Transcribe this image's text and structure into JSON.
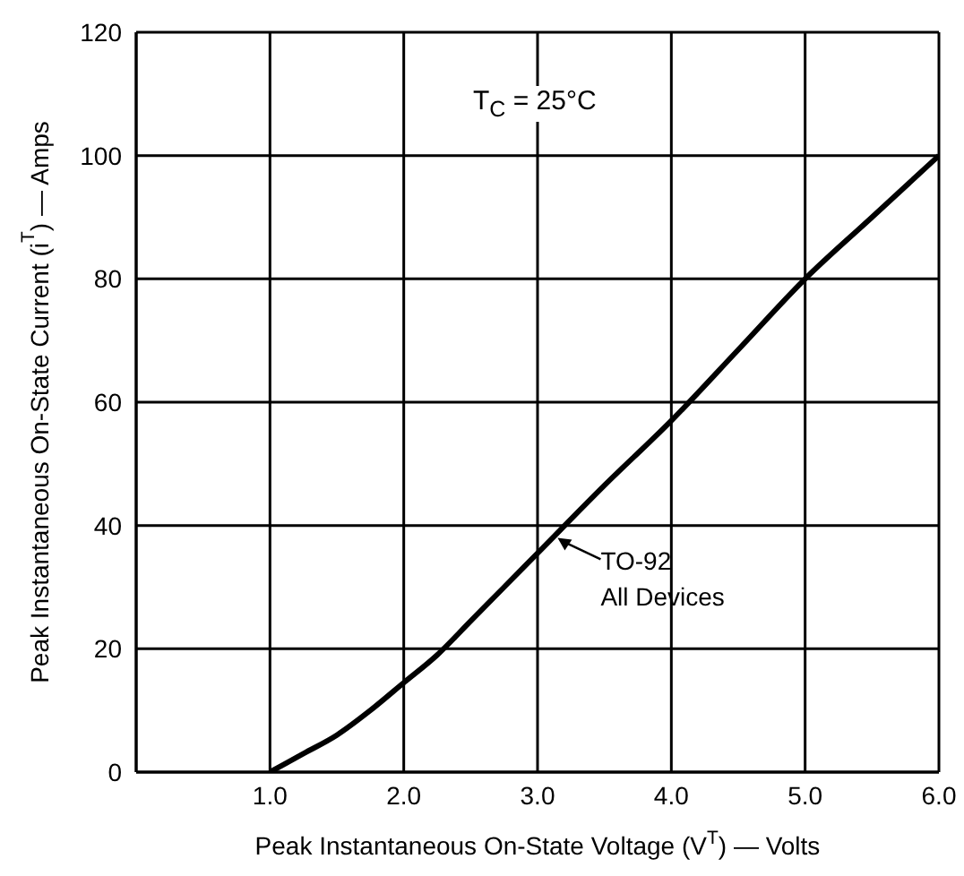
{
  "chart_data": {
    "type": "line",
    "xlabel": "Peak Instantaneous On-State Voltage (V$^{T}$) — Volts",
    "ylabel": "Peak Instantaneous On-State Current (i$^{T}$) — Amps",
    "x": [
      1.0,
      1.25,
      1.5,
      1.75,
      2.0,
      2.25,
      2.5,
      2.75,
      3.0,
      3.5,
      4.0,
      4.5,
      5.0,
      5.5,
      6.0
    ],
    "series": [
      {
        "color": "#000000",
        "values": [
          0,
          3,
          6,
          10,
          14.5,
          19,
          24.5,
          30,
          35.5,
          46.5,
          57,
          68.5,
          80,
          90,
          100
        ]
      }
    ],
    "xlim": [
      0,
      6
    ],
    "xticks": [
      {
        "value": 0,
        "label": null
      },
      {
        "value": 1,
        "label": "1.0"
      },
      {
        "value": 2,
        "label": "2.0"
      },
      {
        "value": 3,
        "label": "3.0"
      },
      {
        "value": 4,
        "label": "4.0"
      },
      {
        "value": 5,
        "label": "5.0"
      },
      {
        "value": 6,
        "label": "6.0"
      }
    ],
    "ylim": [
      0,
      120
    ],
    "yticks": [
      0,
      20,
      40,
      60,
      80,
      100,
      120
    ],
    "grid": true,
    "annotations": [
      "T$_{C}$ = 25°C",
      {
        "text": "TO-92\nAll Devices",
        "x": 3.15,
        "y": 38
      }
    ]
  }
}
